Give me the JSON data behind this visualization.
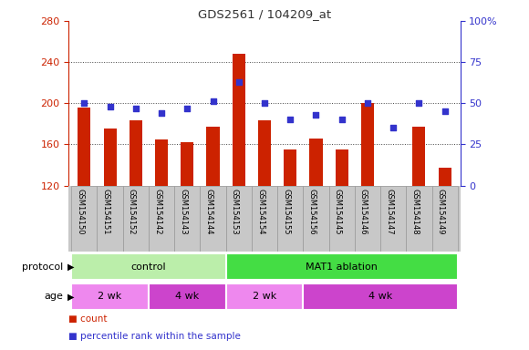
{
  "title": "GDS2561 / 104209_at",
  "samples": [
    "GSM154150",
    "GSM154151",
    "GSM154152",
    "GSM154142",
    "GSM154143",
    "GSM154144",
    "GSM154153",
    "GSM154154",
    "GSM154155",
    "GSM154156",
    "GSM154145",
    "GSM154146",
    "GSM154147",
    "GSM154148",
    "GSM154149"
  ],
  "count_values": [
    196,
    175,
    183,
    165,
    162,
    177,
    248,
    183,
    155,
    166,
    155,
    200,
    118,
    177,
    137
  ],
  "percentile_values": [
    50,
    48,
    47,
    44,
    47,
    51,
    63,
    50,
    40,
    43,
    40,
    50,
    35,
    50,
    45
  ],
  "ylim_left": [
    120,
    280
  ],
  "ylim_right": [
    0,
    100
  ],
  "yticks_left": [
    120,
    160,
    200,
    240,
    280
  ],
  "ytick_labels_left": [
    "120",
    "160",
    "200",
    "240",
    "280"
  ],
  "yticks_right": [
    0,
    25,
    50,
    75,
    100
  ],
  "ytick_labels_right": [
    "0",
    "25",
    "50",
    "75",
    "100%"
  ],
  "bar_color": "#cc2200",
  "dot_color": "#3333cc",
  "bar_width": 0.5,
  "protocol_groups": [
    {
      "label": "control",
      "start": 0,
      "end": 6,
      "color": "#bbeeaa"
    },
    {
      "label": "MAT1 ablation",
      "start": 6,
      "end": 15,
      "color": "#44dd44"
    }
  ],
  "age_groups": [
    {
      "label": "2 wk",
      "start": 0,
      "end": 3,
      "color": "#ee88ee"
    },
    {
      "label": "4 wk",
      "start": 3,
      "end": 6,
      "color": "#cc44cc"
    },
    {
      "label": "2 wk",
      "start": 6,
      "end": 9,
      "color": "#ee88ee"
    },
    {
      "label": "4 wk",
      "start": 9,
      "end": 15,
      "color": "#cc44cc"
    }
  ],
  "protocol_label": "protocol",
  "age_label": "age",
  "legend_count_label": "count",
  "legend_pct_label": "percentile rank within the sample",
  "gridcolor": "#444444",
  "plot_bg": "#ffffff",
  "xtick_bg": "#c8c8c8",
  "left_tick_color": "#cc2200",
  "right_tick_color": "#3333cc",
  "title_color": "#333333"
}
